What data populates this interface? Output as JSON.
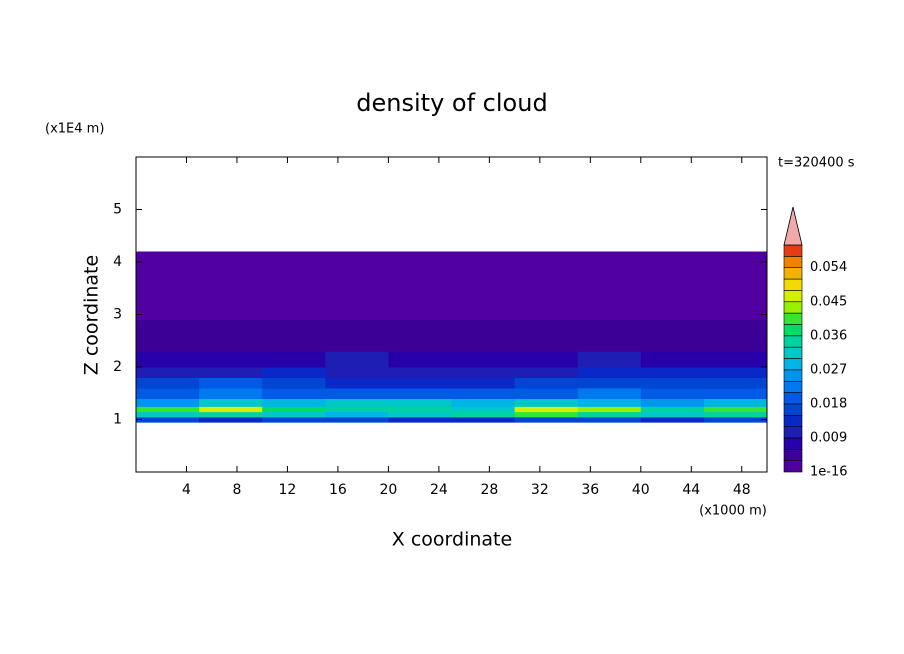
{
  "chart_data": {
    "type": "heatmap",
    "title": "density of cloud",
    "x_label": "X coordinate",
    "y_label": "Z coordinate",
    "x_unit": "(x1000 m)",
    "y_unit": "(x1E4 m)",
    "annotation": "t=320400 s",
    "xlim": [
      0,
      50
    ],
    "ylim": [
      0,
      6
    ],
    "xticks": [
      4,
      8,
      12,
      16,
      20,
      24,
      28,
      32,
      36,
      40,
      44,
      48
    ],
    "yticks": [
      1,
      2,
      3,
      4,
      5
    ],
    "x_bins": [
      0,
      5,
      10,
      15,
      20,
      25,
      30,
      35,
      40,
      45,
      50
    ],
    "y_bins": [
      0.95,
      1.05,
      1.15,
      1.25,
      1.4,
      1.6,
      1.8,
      2.0,
      2.3,
      2.6,
      2.9,
      3.3,
      3.7,
      4.0,
      4.2
    ],
    "values": [
      [
        0.015,
        0.014,
        0.016,
        0.015,
        0.013,
        0.014,
        0.016,
        0.015,
        0.014,
        0.016
      ],
      [
        0.03,
        0.035,
        0.03,
        0.028,
        0.03,
        0.033,
        0.04,
        0.035,
        0.03,
        0.035
      ],
      [
        0.04,
        0.045,
        0.038,
        0.035,
        0.035,
        0.03,
        0.045,
        0.042,
        0.035,
        0.04
      ],
      [
        0.025,
        0.03,
        0.028,
        0.032,
        0.03,
        0.028,
        0.03,
        0.028,
        0.025,
        0.027
      ],
      [
        0.02,
        0.022,
        0.018,
        0.02,
        0.02,
        0.018,
        0.02,
        0.022,
        0.02,
        0.018
      ],
      [
        0.016,
        0.018,
        0.015,
        0.014,
        0.013,
        0.014,
        0.015,
        0.016,
        0.017,
        0.015
      ],
      [
        0.01,
        0.011,
        0.012,
        0.01,
        0.009,
        0.01,
        0.011,
        0.012,
        0.013,
        0.012
      ],
      [
        0.008,
        0.007,
        0.008,
        0.009,
        0.008,
        0.007,
        0.008,
        0.009,
        0.008,
        0.007
      ],
      [
        0.005,
        0.005,
        0.004,
        0.005,
        0.005,
        0.004,
        0.005,
        0.005,
        0.004,
        0.005
      ],
      [
        0.004,
        0.0035,
        0.004,
        0.0035,
        0.004,
        0.004,
        0.0035,
        0.004,
        0.004,
        0.0035
      ],
      [
        0.002,
        0.002,
        0.002,
        0.002,
        0.002,
        0.002,
        0.002,
        0.002,
        0.002,
        0.002
      ],
      [
        0.001,
        0.001,
        0.001,
        0.001,
        0.001,
        0.001,
        0.001,
        0.001,
        0.001,
        0.001
      ],
      [
        0.001,
        0.001,
        0.001,
        0.001,
        0.001,
        0.001,
        0.001,
        0.001,
        0.001,
        0.001
      ],
      [
        0.001,
        0.001,
        0.001,
        0.001,
        0.001,
        0.001,
        0.001,
        0.001,
        0.001,
        0.001
      ]
    ],
    "colorbar": {
      "levels": [
        1e-16,
        0.003,
        0.006,
        0.009,
        0.012,
        0.015,
        0.018,
        0.021,
        0.024,
        0.027,
        0.03,
        0.033,
        0.036,
        0.039,
        0.042,
        0.045,
        0.048,
        0.051,
        0.054,
        0.057,
        0.06
      ],
      "colors": [
        "#5000a0",
        "#3c0096",
        "#2800aa",
        "#1e1eb4",
        "#0a28c8",
        "#0046d2",
        "#005ae6",
        "#0078f0",
        "#0096f0",
        "#00b4e6",
        "#00c8c8",
        "#00d2a0",
        "#00dc64",
        "#32e632",
        "#96f000",
        "#d2f000",
        "#f0dc00",
        "#f0b400",
        "#f08200",
        "#e63c14"
      ],
      "extend_color": "#f0a8a8",
      "ticks": [
        {
          "value": 1e-16,
          "label": "1e-16"
        },
        0.009,
        0.018,
        0.027,
        0.036,
        0.045,
        0.054
      ]
    }
  }
}
